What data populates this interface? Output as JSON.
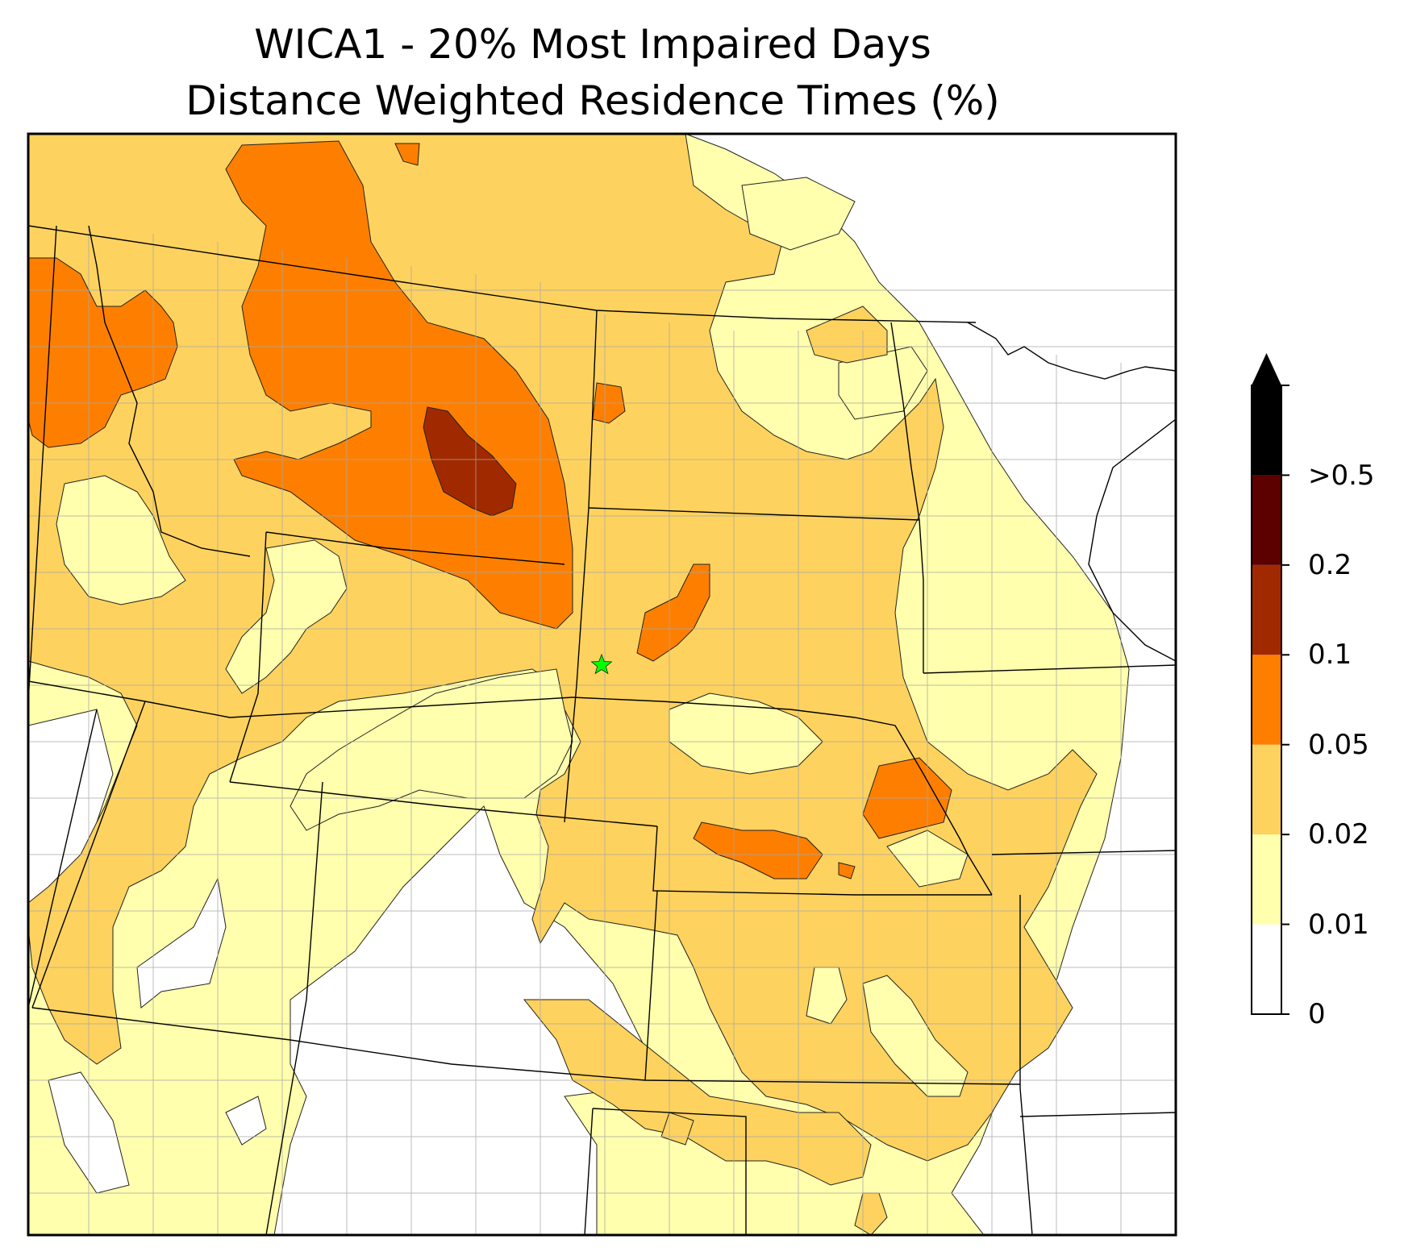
{
  "title_line1": "WICA1 - 20% Most Impaired Days",
  "title_line2": "Distance Weighted Residence Times (%)",
  "colorbar": {
    "ticks": [
      "0",
      "0.01",
      "0.02",
      "0.05",
      "0.1",
      "0.2",
      ">0.5"
    ],
    "bins": [
      {
        "from": "0",
        "to": "0.01",
        "color": "#ffffff"
      },
      {
        "from": "0.01",
        "to": "0.02",
        "color": "#ffffad"
      },
      {
        "from": "0.02",
        "to": "0.05",
        "color": "#fed25e"
      },
      {
        "from": "0.05",
        "to": "0.1",
        "color": "#fe7f00"
      },
      {
        "from": "0.1",
        "to": "0.2",
        "color": "#a12900"
      },
      {
        "from": "0.2",
        "to": ">0.5",
        "color": "#5c0000"
      },
      {
        "from": ">0.5",
        "to": "max",
        "color": "#000000"
      }
    ],
    "extend": "max"
  },
  "site_marker": {
    "color": "#00ff00",
    "symbol": "star"
  },
  "colors": {
    "county_lines": "#a6a6a6",
    "state_lines": "#000000"
  }
}
